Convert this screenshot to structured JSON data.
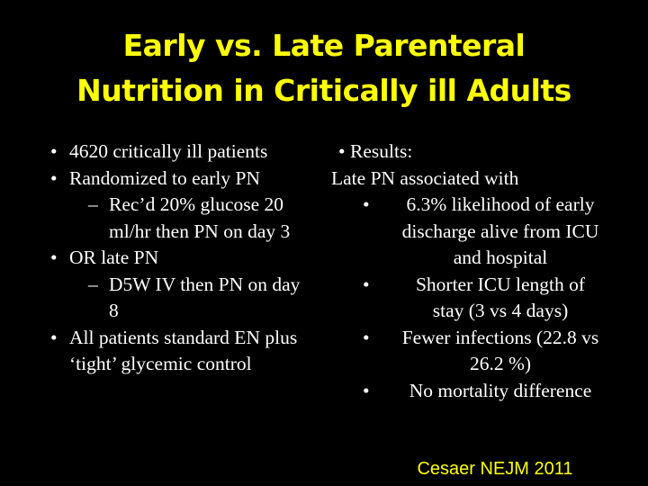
{
  "slide": {
    "title_line1": "Early vs. Late Parenteral",
    "title_line2": "Nutrition in Critically ill Adults",
    "left": {
      "b1": "4620 critically ill patients",
      "b2": "Randomized to early PN",
      "b2_sub_line1": "Rec’d 20% glucose 20",
      "b2_sub_line2": "ml/hr then PN on day 3",
      "b3": "OR late PN",
      "b3_sub_line1": "D5W IV then PN on day",
      "b3_sub_line2": "8",
      "b4_line1": "All patients standard EN plus",
      "b4_line2": "‘tight’ glycemic control",
      "dash": "–"
    },
    "right": {
      "header": "Results:",
      "subheader": "Late PN associated with",
      "r1_line1": "6.3% likelihood of early",
      "r1_line2": "discharge alive from ICU",
      "r1_line3": "and hospital",
      "r2_line1": "Shorter ICU length of",
      "r2_line2": "stay (3 vs 4 days)",
      "r3_line1": "Fewer infections (22.8 vs",
      "r3_line2": "26.2 %)",
      "r4": "No mortality difference"
    },
    "citation": "Cesaer NEJM 2011"
  },
  "colors": {
    "background": "#000000",
    "title": "#ffff00",
    "text": "#ffffff",
    "citation": "#ffff00"
  }
}
